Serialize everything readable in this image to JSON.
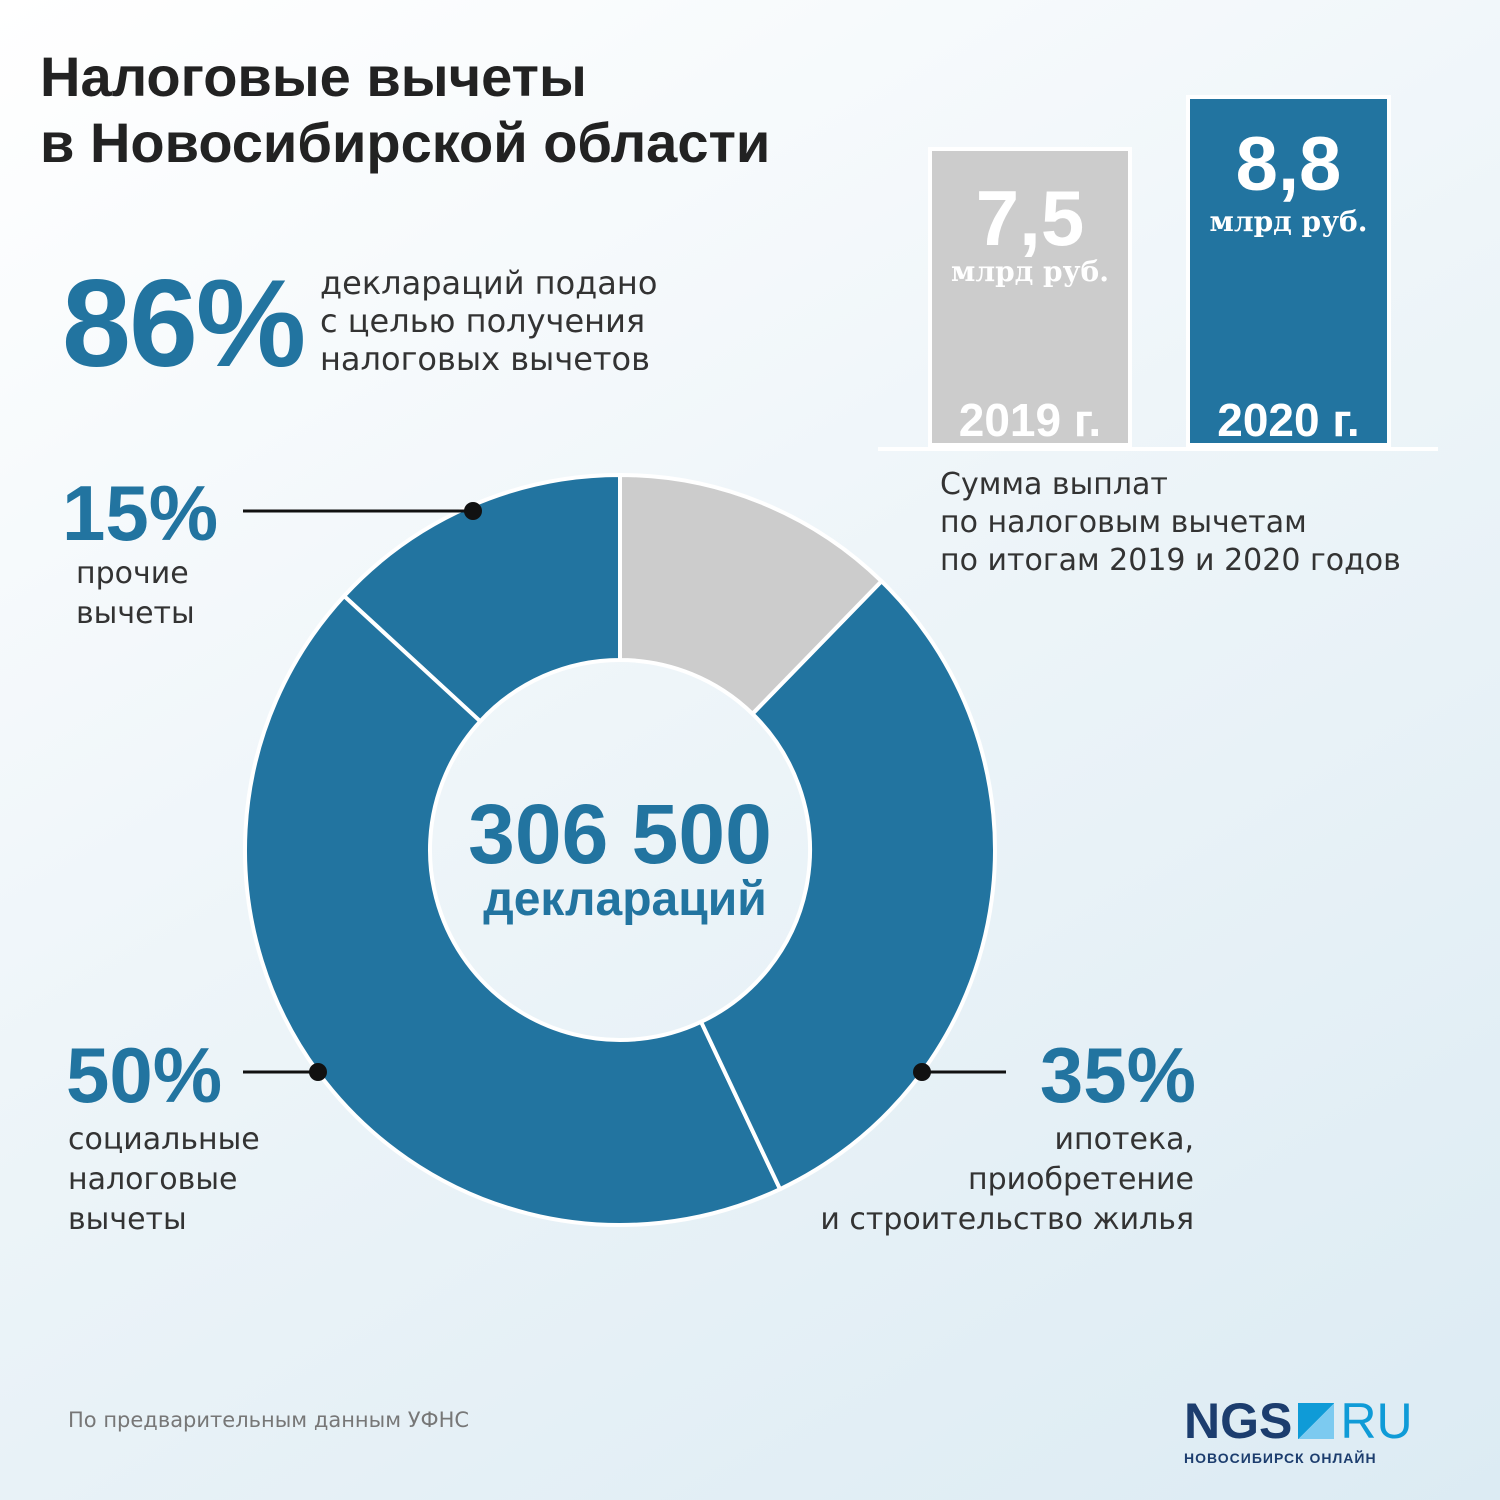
{
  "title": {
    "line1": "Налоговые вычеты",
    "line2": "в Новосибирской области"
  },
  "highlight": {
    "value": "86%",
    "lines": [
      "деклараций подано",
      "с целью получения",
      "налоговых вычетов"
    ]
  },
  "colors": {
    "primary": "#2274a0",
    "gray": "#cccccc",
    "text": "#333333"
  },
  "chart_data": [
    {
      "type": "pie",
      "title": "",
      "center": {
        "value": "306 500",
        "unit": "деклараций"
      },
      "categories": [
        "прочие вычеты",
        "социальные налоговые вычеты",
        "ипотека, приобретение и строительство жилья",
        ""
      ],
      "values": [
        15,
        50,
        35,
        14
      ],
      "colors": [
        "#2274a0",
        "#2274a0",
        "#2274a0",
        "#cccccc"
      ],
      "labels": [
        {
          "value": "15%",
          "lines": [
            "прочие",
            "вычеты"
          ]
        },
        {
          "value": "50%",
          "lines": [
            "социальные",
            "налоговые",
            "вычеты"
          ]
        },
        {
          "value": "35%",
          "lines": [
            "ипотека,",
            "приобретение",
            "и строительство жилья"
          ]
        }
      ]
    },
    {
      "type": "bar",
      "categories": [
        "2019 г.",
        "2020 г."
      ],
      "values": [
        7.5,
        8.8
      ],
      "value_labels": [
        "7,5",
        "8,8"
      ],
      "unit": "млрд руб.",
      "colors": [
        "#cccccc",
        "#2274a0"
      ],
      "caption": [
        "Сумма выплат",
        "по налоговым вычетам",
        "по итогам 2019 и 2020 годов"
      ]
    }
  ],
  "source": "По предварительным данным УФНС",
  "logo": {
    "part1": "NGS",
    "part2": "RU",
    "subtitle": "НОВОСИБИРСК ОНЛАЙН"
  }
}
